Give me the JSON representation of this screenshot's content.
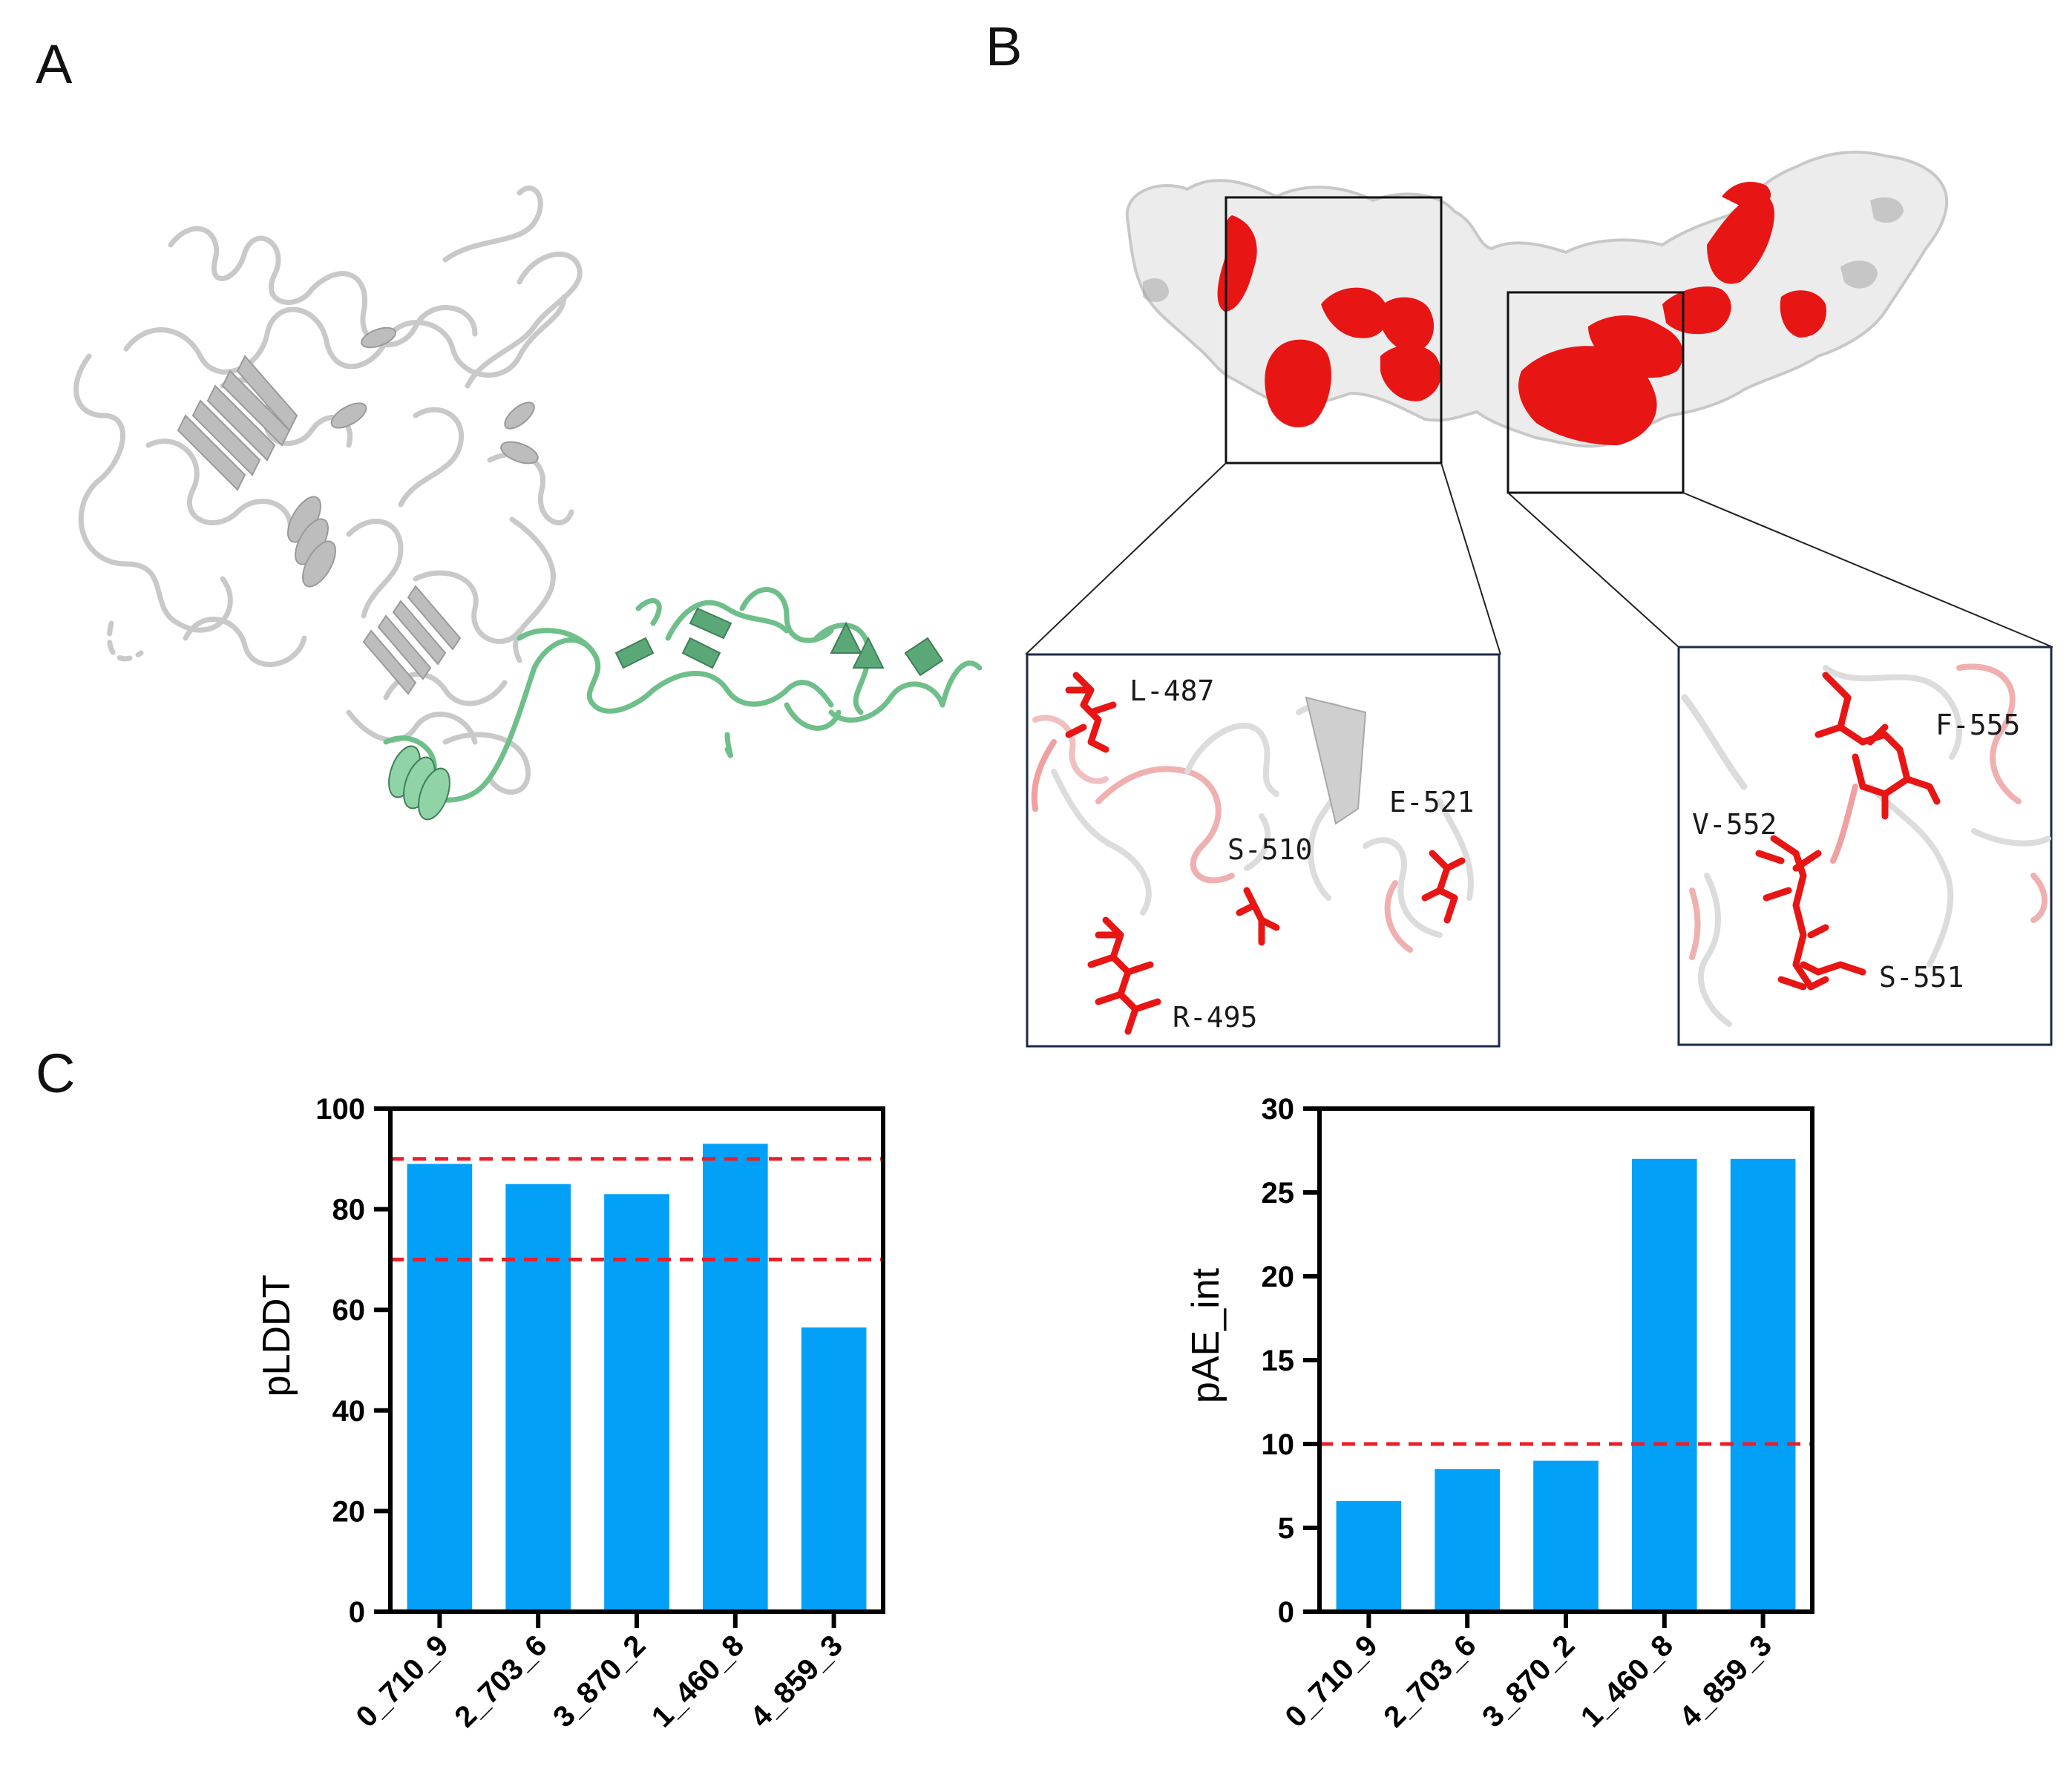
{
  "panels": {
    "a": "A",
    "b": "B",
    "c": "C"
  },
  "colors": {
    "bar": "#03a0f8",
    "threshold_line": "#e8202a",
    "highlight": "#e81515",
    "surface": "#ececec",
    "binder": "#6fbf8a",
    "box_border": "#1e2a4a"
  },
  "panel_b": {
    "left_inset_labels": [
      "L-487",
      "S-510",
      "E-521",
      "R-495"
    ],
    "right_inset_labels": [
      "F-555",
      "V-552",
      "S-551"
    ]
  },
  "chart_data": [
    {
      "type": "bar",
      "categories": [
        "0_710_9",
        "2_703_6",
        "3_870_2",
        "1_460_8",
        "4_859_3"
      ],
      "values": [
        89,
        85,
        83,
        93,
        56.5
      ],
      "ylabel": "pLDDT",
      "xlabel": "",
      "ylim": [
        0,
        100
      ],
      "yticks": [
        0,
        20,
        40,
        60,
        80,
        100
      ],
      "threshold_lines": [
        90,
        70
      ],
      "grid": false
    },
    {
      "type": "bar",
      "categories": [
        "0_710_9",
        "2_703_6",
        "3_870_2",
        "1_460_8",
        "4_859_3"
      ],
      "values": [
        6.6,
        8.5,
        9.0,
        27.0,
        27.0
      ],
      "ylabel": "pAE_int",
      "xlabel": "",
      "ylim": [
        0,
        30
      ],
      "yticks": [
        0,
        5,
        10,
        15,
        20,
        25,
        30
      ],
      "threshold_lines": [
        10
      ],
      "grid": false
    }
  ]
}
